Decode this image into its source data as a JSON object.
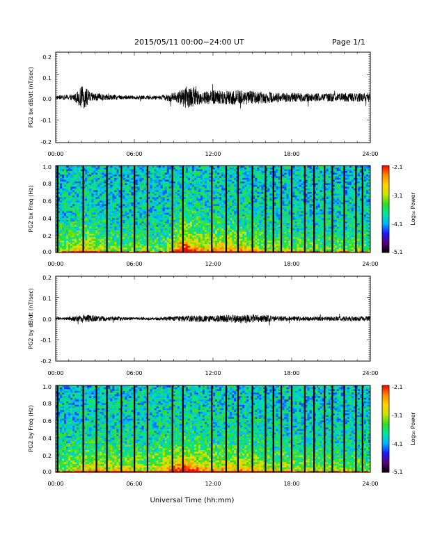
{
  "header": {
    "title": "2015/05/11  00:00−24:00 UT",
    "page": "Page 1/1"
  },
  "footer": {
    "xlabel": "Universal Time (hh:mm)"
  },
  "colors": {
    "trace": "#000000",
    "gap": "#000000"
  },
  "colorbar": {
    "label": "Log₁₀ Power",
    "ticks": [
      "-2.1",
      "-3.1",
      "-4.1",
      "-5.1"
    ],
    "range": [
      -5.1,
      -2.1
    ],
    "colormap": [
      "#000000",
      "#5a007a",
      "#1a1aff",
      "#00b4ff",
      "#00e6a0",
      "#33dd22",
      "#c8e600",
      "#ffd200",
      "#ff8a00",
      "#ff0000"
    ]
  },
  "chart_data": [
    {
      "type": "line",
      "title": "",
      "xlabel": "",
      "ylabel": "PG2 bx dB/dt (nT/sec)",
      "xlim": [
        0,
        24
      ],
      "ylim": [
        -0.2,
        0.2
      ],
      "xticks": [
        "00:00",
        "06:00",
        "12:00",
        "18:00",
        "24:00"
      ],
      "yticks": [
        "0.2",
        "0.1",
        "0.0",
        "-0.1",
        "-0.2"
      ],
      "activity": [
        {
          "t": 0.0,
          "amp": 0.008
        },
        {
          "t": 1.0,
          "amp": 0.012
        },
        {
          "t": 1.5,
          "amp": 0.02
        },
        {
          "t": 2.1,
          "amp": 0.055
        },
        {
          "t": 2.7,
          "amp": 0.022
        },
        {
          "t": 4.0,
          "amp": 0.012
        },
        {
          "t": 6.0,
          "amp": 0.008
        },
        {
          "t": 8.0,
          "amp": 0.01
        },
        {
          "t": 9.3,
          "amp": 0.025
        },
        {
          "t": 10.0,
          "amp": 0.05
        },
        {
          "t": 11.0,
          "amp": 0.03
        },
        {
          "t": 13.5,
          "amp": 0.035
        },
        {
          "t": 15.0,
          "amp": 0.03
        },
        {
          "t": 17.0,
          "amp": 0.022
        },
        {
          "t": 20.0,
          "amp": 0.018
        },
        {
          "t": 24.0,
          "amp": 0.02
        }
      ]
    },
    {
      "type": "heatmap",
      "title": "",
      "xlabel": "",
      "ylabel": "PG2 bx Freq (Hz)",
      "xlim": [
        0,
        24
      ],
      "ylim": [
        0,
        1.0
      ],
      "xticks": [
        "00:00",
        "06:00",
        "12:00",
        "18:00",
        "24:00"
      ],
      "yticks": [
        "1.0",
        "0.8",
        "0.6",
        "0.4",
        "0.2",
        "0.0"
      ],
      "colorbar_range": [
        -5.1,
        -2.1
      ],
      "gaps_hours": [
        0.15,
        2.1,
        3.9,
        5.0,
        6.0,
        7.0,
        8.9,
        9.7,
        11.9,
        13.0,
        13.9,
        15.0,
        16.0,
        16.6,
        17.2,
        18.0,
        19.0,
        19.7,
        20.5,
        21.1,
        22.0,
        22.9,
        23.4
      ],
      "activity": [
        {
          "t": 0.0,
          "amp": 0.3
        },
        {
          "t": 1.0,
          "amp": 0.4
        },
        {
          "t": 2.2,
          "amp": 0.6
        },
        {
          "t": 4.0,
          "amp": 0.35
        },
        {
          "t": 6.0,
          "amp": 0.3
        },
        {
          "t": 8.5,
          "amp": 0.3
        },
        {
          "t": 9.8,
          "amp": 1.0
        },
        {
          "t": 11.0,
          "amp": 0.6
        },
        {
          "t": 13.5,
          "amp": 0.65
        },
        {
          "t": 15.5,
          "amp": 0.45
        },
        {
          "t": 18.0,
          "amp": 0.35
        },
        {
          "t": 21.0,
          "amp": 0.3
        },
        {
          "t": 24.0,
          "amp": 0.3
        }
      ]
    },
    {
      "type": "line",
      "title": "",
      "xlabel": "",
      "ylabel": "PG2 by dB/dt (nT/sec)",
      "xlim": [
        0,
        24
      ],
      "ylim": [
        -0.2,
        0.2
      ],
      "xticks": [
        "00:00",
        "06:00",
        "12:00",
        "18:00",
        "24:00"
      ],
      "yticks": [
        "0.2",
        "0.1",
        "0.0",
        "-0.1",
        "-0.2"
      ],
      "activity": [
        {
          "t": 0.0,
          "amp": 0.006
        },
        {
          "t": 1.0,
          "amp": 0.008
        },
        {
          "t": 2.2,
          "amp": 0.02
        },
        {
          "t": 3.5,
          "amp": 0.012
        },
        {
          "t": 6.0,
          "amp": 0.006
        },
        {
          "t": 8.0,
          "amp": 0.008
        },
        {
          "t": 10.0,
          "amp": 0.015
        },
        {
          "t": 12.0,
          "amp": 0.015
        },
        {
          "t": 14.5,
          "amp": 0.022
        },
        {
          "t": 17.0,
          "amp": 0.012
        },
        {
          "t": 20.0,
          "amp": 0.01
        },
        {
          "t": 24.0,
          "amp": 0.012
        }
      ]
    },
    {
      "type": "heatmap",
      "title": "",
      "xlabel": "",
      "ylabel": "PG2 by Freq (Hz)",
      "xlim": [
        0,
        24
      ],
      "ylim": [
        0,
        1.0
      ],
      "xticks": [
        "00:00",
        "06:00",
        "12:00",
        "18:00",
        "24:00"
      ],
      "yticks": [
        "1.0",
        "0.8",
        "0.6",
        "0.4",
        "0.2",
        "0.0"
      ],
      "colorbar_range": [
        -5.1,
        -2.1
      ],
      "gaps_hours": [
        0.15,
        2.1,
        3.1,
        3.9,
        5.0,
        6.0,
        7.0,
        8.9,
        9.7,
        11.9,
        13.0,
        13.9,
        15.0,
        16.0,
        16.6,
        17.2,
        18.0,
        19.0,
        19.7,
        20.5,
        21.1,
        22.0,
        22.9,
        23.4
      ],
      "activity": [
        {
          "t": 0.0,
          "amp": 0.3
        },
        {
          "t": 1.2,
          "amp": 0.45
        },
        {
          "t": 2.3,
          "amp": 0.55
        },
        {
          "t": 5.5,
          "amp": 0.5
        },
        {
          "t": 7.0,
          "amp": 0.4
        },
        {
          "t": 9.8,
          "amp": 0.9
        },
        {
          "t": 12.0,
          "amp": 0.55
        },
        {
          "t": 14.0,
          "amp": 0.65
        },
        {
          "t": 16.0,
          "amp": 0.5
        },
        {
          "t": 19.0,
          "amp": 0.4
        },
        {
          "t": 22.0,
          "amp": 0.35
        },
        {
          "t": 24.0,
          "amp": 0.3
        }
      ]
    }
  ]
}
